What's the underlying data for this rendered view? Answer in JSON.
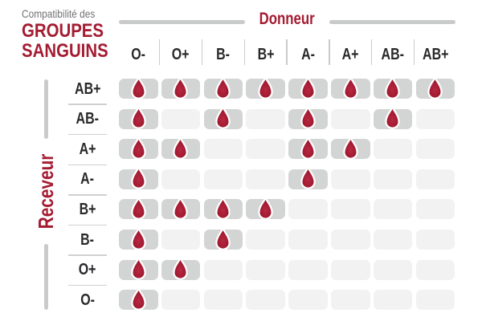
{
  "header": {
    "eyebrow": "Compatibilité des",
    "title_line1": "GROUPES",
    "title_line2": "SANGUINS"
  },
  "chart_data": {
    "type": "heatmap",
    "title": "Compatibilité des GROUPES SANGUINS",
    "columns_label": "Donneur",
    "rows_label": "Receveur",
    "donors": [
      "O-",
      "O+",
      "B-",
      "B+",
      "A-",
      "A+",
      "AB-",
      "AB+"
    ],
    "receivers": [
      "AB+",
      "AB-",
      "A+",
      "A-",
      "B+",
      "B-",
      "O+",
      "O-"
    ],
    "cell_mark": "blood-drop",
    "matrix": [
      [
        1,
        1,
        1,
        1,
        1,
        1,
        1,
        1
      ],
      [
        1,
        0,
        1,
        0,
        1,
        0,
        1,
        0
      ],
      [
        1,
        1,
        0,
        0,
        1,
        1,
        0,
        0
      ],
      [
        1,
        0,
        0,
        0,
        1,
        0,
        0,
        0
      ],
      [
        1,
        1,
        1,
        1,
        0,
        0,
        0,
        0
      ],
      [
        1,
        0,
        1,
        0,
        0,
        0,
        0,
        0
      ],
      [
        1,
        1,
        0,
        0,
        0,
        0,
        0,
        0
      ],
      [
        1,
        0,
        0,
        0,
        0,
        0,
        0,
        0
      ]
    ],
    "colors": {
      "accent_red": "#a41c32",
      "drop_gradient": [
        "#b72943",
        "#a41c32",
        "#8c1026"
      ],
      "cell_filled": "#d3d5d5",
      "cell_empty": "#f2f2f3",
      "line_gray": "#c9cbcb",
      "text_dark": "#29292b",
      "text_gray": "#717275"
    }
  }
}
